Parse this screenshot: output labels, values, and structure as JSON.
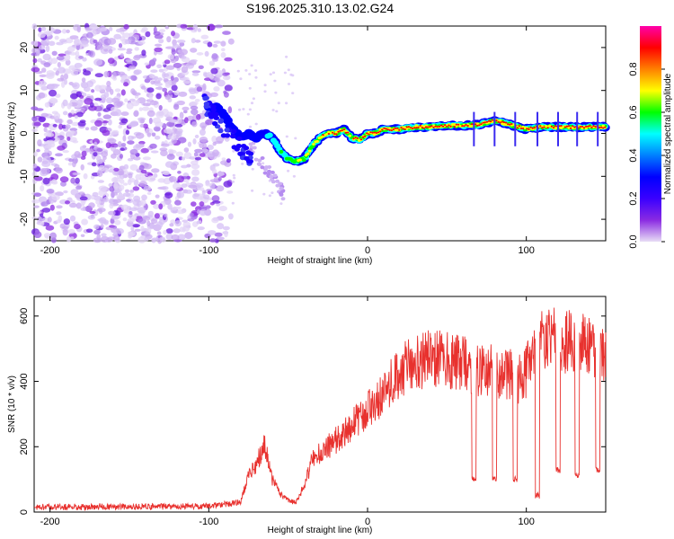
{
  "title": "S196.2025.310.13.02.G24",
  "chart_data": [
    {
      "type": "heatmap",
      "name": "spectrogram",
      "xlabel": "Height of straight line (km)",
      "ylabel": "Frequency (Hz)",
      "xlim": [
        -210,
        150
      ],
      "ylim": [
        -25,
        25
      ],
      "xticks": [
        -200,
        -100,
        0,
        100
      ],
      "yticks": [
        20,
        10,
        0,
        -10,
        -20
      ],
      "colorbar": {
        "label": "Normalized spectral amplitude",
        "range": [
          0.0,
          1.0
        ],
        "ticks": [
          "0.0",
          "0.2",
          "0.4",
          "0.6",
          "0.8"
        ],
        "colors": [
          "#e8ddf5",
          "#8a2be2",
          "#3a00ff",
          "#0000ff",
          "#0080ff",
          "#00ffff",
          "#00ff00",
          "#ffff00",
          "#ff8000",
          "#ff0000",
          "#ff00aa"
        ]
      },
      "ridge": {
        "x": [
          -100,
          -95,
          -90,
          -85,
          -80,
          -75,
          -70,
          -65,
          -60,
          -55,
          -50,
          -45,
          -40,
          -35,
          -30,
          -25,
          -20,
          -15,
          -10,
          -5,
          0,
          5,
          10,
          20,
          30,
          40,
          50,
          60,
          70,
          80,
          90,
          100,
          110,
          120,
          130,
          140,
          150
        ],
        "y": [
          6,
          6,
          4,
          1,
          -1,
          0,
          -1,
          0,
          -1,
          -4,
          -6,
          -6.5,
          -6,
          -3,
          -1,
          0,
          0,
          1,
          -1,
          -1.5,
          0,
          0,
          1,
          1,
          1.5,
          1.5,
          1.8,
          1.8,
          2,
          3,
          2,
          1,
          1.5,
          1.5,
          1.5,
          1.5,
          1.5
        ],
        "amp": [
          0.15,
          0.2,
          0.2,
          0.2,
          0.2,
          0.2,
          0.25,
          0.3,
          0.4,
          0.5,
          0.6,
          0.7,
          0.7,
          0.75,
          0.8,
          0.85,
          0.9,
          0.9,
          0.7,
          0.9,
          0.95,
          0.95,
          0.95,
          0.95,
          0.9,
          0.9,
          0.9,
          0.85,
          0.9,
          0.95,
          0.9,
          0.85,
          0.9,
          0.9,
          0.9,
          0.9,
          0.9
        ]
      }
    },
    {
      "type": "line",
      "name": "snr",
      "xlabel": "Height of straight line (km)",
      "ylabel": "SNR (10 * v/v)",
      "xlim": [
        -210,
        150
      ],
      "ylim": [
        0,
        660
      ],
      "xticks": [
        -200,
        -100,
        0,
        100
      ],
      "yticks": [
        600,
        400,
        200,
        0
      ],
      "color": "#e8312e",
      "envelope": {
        "x": [
          -210,
          -100,
          -80,
          -75,
          -70,
          -65,
          -60,
          -55,
          -50,
          -45,
          -40,
          -35,
          -30,
          -20,
          -10,
          0,
          10,
          20,
          30,
          40,
          50,
          60,
          65,
          70,
          80,
          90,
          95,
          100,
          105,
          110,
          115,
          120,
          130,
          140,
          150
        ],
        "y": [
          20,
          22,
          35,
          120,
          160,
          230,
          110,
          60,
          40,
          30,
          90,
          170,
          200,
          240,
          290,
          340,
          400,
          470,
          500,
          520,
          510,
          500,
          490,
          480,
          470,
          460,
          450,
          470,
          560,
          570,
          600,
          560,
          580,
          570,
          520
        ]
      },
      "dropouts": [
        {
          "x": 67,
          "low": 90
        },
        {
          "x": 80,
          "low": 90
        },
        {
          "x": 93,
          "low": 90
        },
        {
          "x": 107,
          "low": 40
        },
        {
          "x": 120,
          "low": 120
        },
        {
          "x": 132,
          "low": 100
        },
        {
          "x": 145,
          "low": 120
        }
      ]
    }
  ]
}
